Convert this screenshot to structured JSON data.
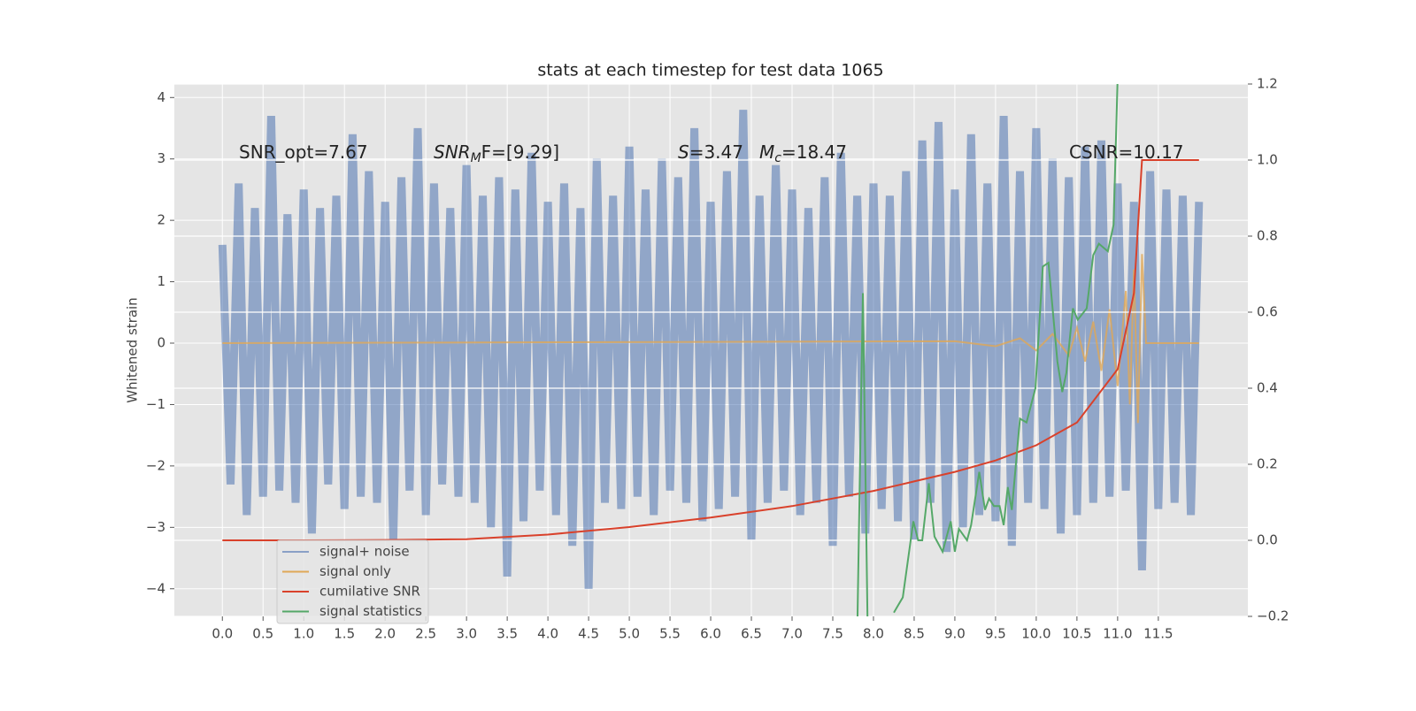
{
  "chart_data": {
    "type": "line",
    "title": "stats at each timestep for test data 1065",
    "y_label": "Whitened strain",
    "xlim": [
      -0.59,
      12.6
    ],
    "ylim": [
      -4.45,
      4.22
    ],
    "y2lim": [
      -0.2,
      1.2
    ],
    "xticks": [
      {
        "value": 0,
        "label": "0.0"
      },
      0.5,
      {
        "value": 1,
        "label": "1.0"
      },
      1.5,
      {
        "value": 2,
        "label": "2.0"
      },
      2.5,
      {
        "value": 3,
        "label": "3.0"
      },
      3.5,
      {
        "value": 4,
        "label": "4.0"
      },
      4.5,
      {
        "value": 5,
        "label": "5.0"
      },
      5.5,
      {
        "value": 6,
        "label": "6.0"
      },
      6.5,
      {
        "value": 7,
        "label": "7.0"
      },
      7.5,
      {
        "value": 8,
        "label": "8.0"
      },
      8.5,
      {
        "value": 9,
        "label": "9.0"
      },
      9.5,
      {
        "value": 10,
        "label": "10.0"
      },
      10.5,
      {
        "value": 11,
        "label": "11.0"
      },
      11.5
    ],
    "yticks": [
      {
        "value": -4,
        "label": "−4"
      },
      {
        "value": -3,
        "label": "−3"
      },
      {
        "value": -2,
        "label": "−2"
      },
      {
        "value": -1,
        "label": "−1"
      },
      0,
      1,
      2,
      3,
      4
    ],
    "y2ticks": [
      {
        "value": -0.2,
        "label": "−0.2"
      },
      {
        "value": 0,
        "label": "0.0"
      },
      0.2,
      0.4,
      0.6,
      0.8,
      {
        "value": 1,
        "label": "1.0"
      },
      1.2
    ],
    "grid": true,
    "legend": "lower left",
    "annotations": [
      {
        "text": "SNR_opt=7.67"
      },
      {
        "text": "SNR",
        "sub": "M",
        "rest": "F=[9.29]"
      },
      {
        "text": "S",
        "rest": "=3.47"
      },
      {
        "text": "M",
        "sub": "c",
        "rest": "=18.47"
      },
      {
        "text": "CSNR=10.17"
      }
    ],
    "series": [
      {
        "name": "signal+ noise",
        "color": "#4c72b0",
        "x": [
          0.0,
          0.1,
          0.2,
          0.3,
          0.4,
          0.5,
          0.6,
          0.7,
          0.8,
          0.9,
          1.0,
          1.1,
          1.2,
          1.3,
          1.4,
          1.5,
          1.6,
          1.7,
          1.8,
          1.9,
          2.0,
          2.1,
          2.2,
          2.3,
          2.4,
          2.5,
          2.6,
          2.7,
          2.8,
          2.9,
          3.0,
          3.1,
          3.2,
          3.3,
          3.4,
          3.5,
          3.6,
          3.7,
          3.8,
          3.9,
          4.0,
          4.1,
          4.2,
          4.3,
          4.4,
          4.5,
          4.6,
          4.7,
          4.8,
          4.9,
          5.0,
          5.1,
          5.2,
          5.3,
          5.4,
          5.5,
          5.6,
          5.7,
          5.8,
          5.9,
          6.0,
          6.1,
          6.2,
          6.3,
          6.4,
          6.5,
          6.6,
          6.7,
          6.8,
          6.9,
          7.0,
          7.1,
          7.2,
          7.3,
          7.4,
          7.5,
          7.6,
          7.7,
          7.8,
          7.9,
          8.0,
          8.1,
          8.2,
          8.3,
          8.4,
          8.5,
          8.6,
          8.7,
          8.8,
          8.9,
          9.0,
          9.1,
          9.2,
          9.3,
          9.4,
          9.5,
          9.6,
          9.7,
          9.8,
          9.9,
          10.0,
          10.1,
          10.2,
          10.3,
          10.4,
          10.5,
          10.6,
          10.7,
          10.8,
          10.9,
          11.0,
          11.1,
          11.2,
          11.3,
          11.4,
          11.5,
          11.6,
          11.7,
          11.8,
          11.9,
          12.0
        ],
        "values": [
          1.6,
          -2.3,
          2.6,
          -2.8,
          2.2,
          -2.5,
          3.7,
          -2.4,
          2.1,
          -2.6,
          2.5,
          -3.1,
          2.2,
          -2.3,
          2.4,
          -2.7,
          3.4,
          -2.5,
          2.8,
          -2.6,
          2.3,
          -3.2,
          2.7,
          -2.4,
          3.5,
          -2.8,
          2.6,
          -2.3,
          2.2,
          -2.5,
          2.9,
          -2.6,
          2.4,
          -3.0,
          2.7,
          -3.8,
          2.5,
          -2.9,
          3.1,
          -2.4,
          2.3,
          -2.8,
          2.6,
          -3.3,
          2.2,
          -4.0,
          3.0,
          -2.6,
          2.4,
          -2.7,
          3.2,
          -2.5,
          2.5,
          -2.8,
          3.0,
          -2.4,
          2.7,
          -2.6,
          3.5,
          -2.9,
          2.3,
          -2.7,
          2.8,
          -2.5,
          3.8,
          -3.2,
          2.4,
          -2.6,
          2.9,
          -2.4,
          2.5,
          -2.8,
          2.2,
          -2.6,
          2.7,
          -3.3,
          3.1,
          -2.5,
          2.4,
          -3.1,
          2.6,
          -2.7,
          2.4,
          -2.9,
          2.8,
          -3.2,
          3.3,
          -2.6,
          3.6,
          -3.4,
          2.5,
          -3.0,
          3.4,
          -2.8,
          2.6,
          -2.9,
          3.7,
          -3.3,
          2.8,
          -2.6,
          3.5,
          -2.7,
          3.0,
          -3.1,
          2.7,
          -2.8,
          3.2,
          -2.6,
          3.3,
          -2.5,
          2.6,
          -2.4,
          2.3,
          -3.7,
          2.8,
          -2.7,
          2.5,
          -2.6,
          2.4,
          -2.8,
          2.3
        ]
      },
      {
        "name": "signal only",
        "color": "#e0a856",
        "x": [
          0,
          9.0,
          9.5,
          9.8,
          10.0,
          10.2,
          10.4,
          10.5,
          10.6,
          10.7,
          10.8,
          10.9,
          11.0,
          11.1,
          11.15,
          11.2,
          11.25,
          11.3,
          11.35,
          12.0
        ],
        "values": [
          0,
          0.03,
          -0.05,
          0.08,
          -0.12,
          0.15,
          -0.2,
          0.25,
          -0.3,
          0.35,
          -0.45,
          0.55,
          -0.7,
          0.85,
          -1.0,
          1.2,
          -1.3,
          1.45,
          0,
          0
        ]
      },
      {
        "name": "cumilative SNR",
        "color": "#d9412b",
        "axis": "y2",
        "x": [
          0,
          1,
          2,
          3,
          4,
          5,
          6,
          7,
          7.5,
          8,
          8.5,
          9,
          9.5,
          10,
          10.5,
          11,
          11.2,
          11.3,
          12.0
        ],
        "values": [
          0.0,
          0.0,
          0.001,
          0.003,
          0.015,
          0.035,
          0.06,
          0.09,
          0.11,
          0.13,
          0.155,
          0.18,
          0.21,
          0.25,
          0.31,
          0.45,
          0.65,
          1.0,
          1.0
        ]
      },
      {
        "name": "signal statistics",
        "color": "#55a868",
        "axis": "y2",
        "x": [
          7.8,
          7.87,
          7.93,
          8.1,
          8.25,
          8.36,
          8.49,
          8.55,
          8.6,
          8.68,
          8.75,
          8.85,
          8.95,
          9.0,
          9.05,
          9.15,
          9.2,
          9.3,
          9.37,
          9.42,
          9.48,
          9.55,
          9.6,
          9.65,
          9.7,
          9.8,
          9.88,
          9.99,
          10.08,
          10.15,
          10.26,
          10.32,
          10.37,
          10.45,
          10.51,
          10.62,
          10.7,
          10.77,
          10.88,
          10.95,
          11.0
        ],
        "values": [
          -0.25,
          0.65,
          -0.25,
          null,
          -0.19,
          -0.15,
          0.05,
          0.0,
          0.0,
          0.15,
          0.01,
          -0.03,
          0.05,
          -0.03,
          0.03,
          0.0,
          0.04,
          0.18,
          0.08,
          0.11,
          0.09,
          0.09,
          0.04,
          0.14,
          0.08,
          0.32,
          0.31,
          0.4,
          0.72,
          0.73,
          0.47,
          0.39,
          0.44,
          0.61,
          0.58,
          0.61,
          0.75,
          0.78,
          0.76,
          0.83,
          1.22
        ]
      }
    ]
  }
}
